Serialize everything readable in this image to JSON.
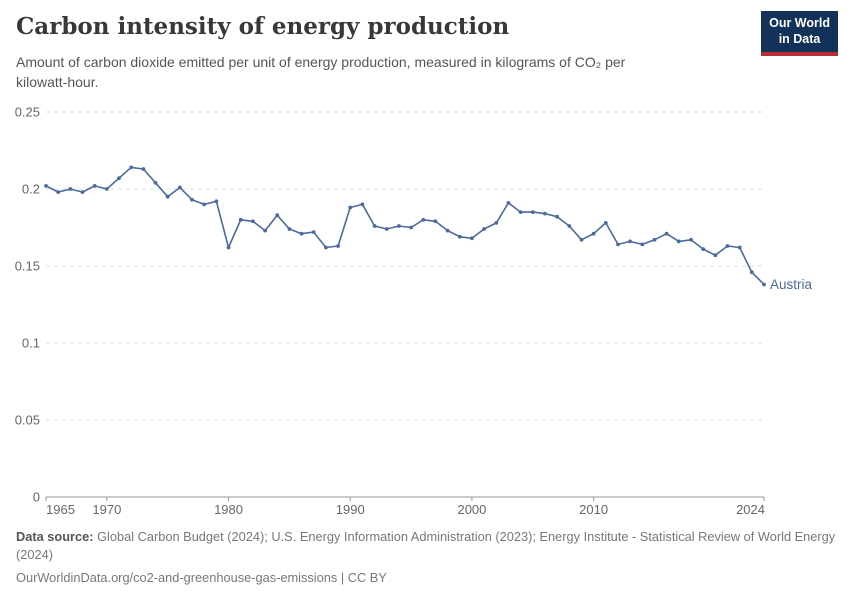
{
  "header": {
    "title": "Carbon intensity of energy production",
    "subtitle": "Amount of carbon dioxide emitted per unit of energy production, measured in kilograms of CO₂ per kilowatt-hour.",
    "logo": {
      "line1": "Our World",
      "line2": "in Data",
      "bg_color": "#12325a",
      "stripe_color": "#bc2d33"
    }
  },
  "chart_data": {
    "type": "line",
    "title": "Carbon intensity of energy production",
    "ylabel": "",
    "xlabel": "",
    "grid": "horizontal-dashed",
    "legend_position": "end-of-line-label",
    "xlim": [
      1965,
      2024
    ],
    "ylim": [
      0,
      0.25
    ],
    "yticks": [
      {
        "value": 0,
        "label": "0"
      },
      {
        "value": 0.05,
        "label": "0.05"
      },
      {
        "value": 0.1,
        "label": "0.1"
      },
      {
        "value": 0.15,
        "label": "0.15"
      },
      {
        "value": 0.2,
        "label": "0.2"
      },
      {
        "value": 0.25,
        "label": "0.25"
      }
    ],
    "xticks": [
      {
        "value": 1965,
        "label": "1965"
      },
      {
        "value": 1970,
        "label": "1970"
      },
      {
        "value": 1980,
        "label": "1980"
      },
      {
        "value": 1990,
        "label": "1990"
      },
      {
        "value": 2000,
        "label": "2000"
      },
      {
        "value": 2010,
        "label": "2010"
      },
      {
        "value": 2024,
        "label": "2024"
      }
    ],
    "x": [
      1965,
      1966,
      1967,
      1968,
      1969,
      1970,
      1971,
      1972,
      1973,
      1974,
      1975,
      1976,
      1977,
      1978,
      1979,
      1980,
      1981,
      1982,
      1983,
      1984,
      1985,
      1986,
      1987,
      1988,
      1989,
      1990,
      1991,
      1992,
      1993,
      1994,
      1995,
      1996,
      1997,
      1998,
      1999,
      2000,
      2001,
      2002,
      2003,
      2004,
      2005,
      2006,
      2007,
      2008,
      2009,
      2010,
      2011,
      2012,
      2013,
      2014,
      2015,
      2016,
      2017,
      2018,
      2019,
      2020,
      2021,
      2022,
      2023,
      2024
    ],
    "series": [
      {
        "name": "Austria",
        "color": "#4c6a9c",
        "values": [
          0.202,
          0.198,
          0.2,
          0.198,
          0.202,
          0.2,
          0.207,
          0.214,
          0.213,
          0.204,
          0.195,
          0.201,
          0.193,
          0.19,
          0.192,
          0.162,
          0.18,
          0.179,
          0.173,
          0.183,
          0.174,
          0.171,
          0.172,
          0.162,
          0.163,
          0.188,
          0.19,
          0.176,
          0.174,
          0.176,
          0.175,
          0.18,
          0.179,
          0.173,
          0.169,
          0.168,
          0.174,
          0.178,
          0.191,
          0.185,
          0.185,
          0.184,
          0.182,
          0.176,
          0.167,
          0.171,
          0.178,
          0.164,
          0.166,
          0.164,
          0.167,
          0.171,
          0.166,
          0.167,
          0.161,
          0.157,
          0.163,
          0.162,
          0.146,
          0.138
        ]
      }
    ],
    "axis_color": "#999999",
    "gridline_color": "#dddddd",
    "tick_label_color": "#666666"
  },
  "footer": {
    "source_label": "Data source:",
    "source_text": " Global Carbon Budget (2024); U.S. Energy Information Administration (2023); Energy Institute - Statistical Review of World Energy (2024)",
    "link_text": "OurWorldinData.org/co2-and-greenhouse-gas-emissions | CC BY"
  }
}
